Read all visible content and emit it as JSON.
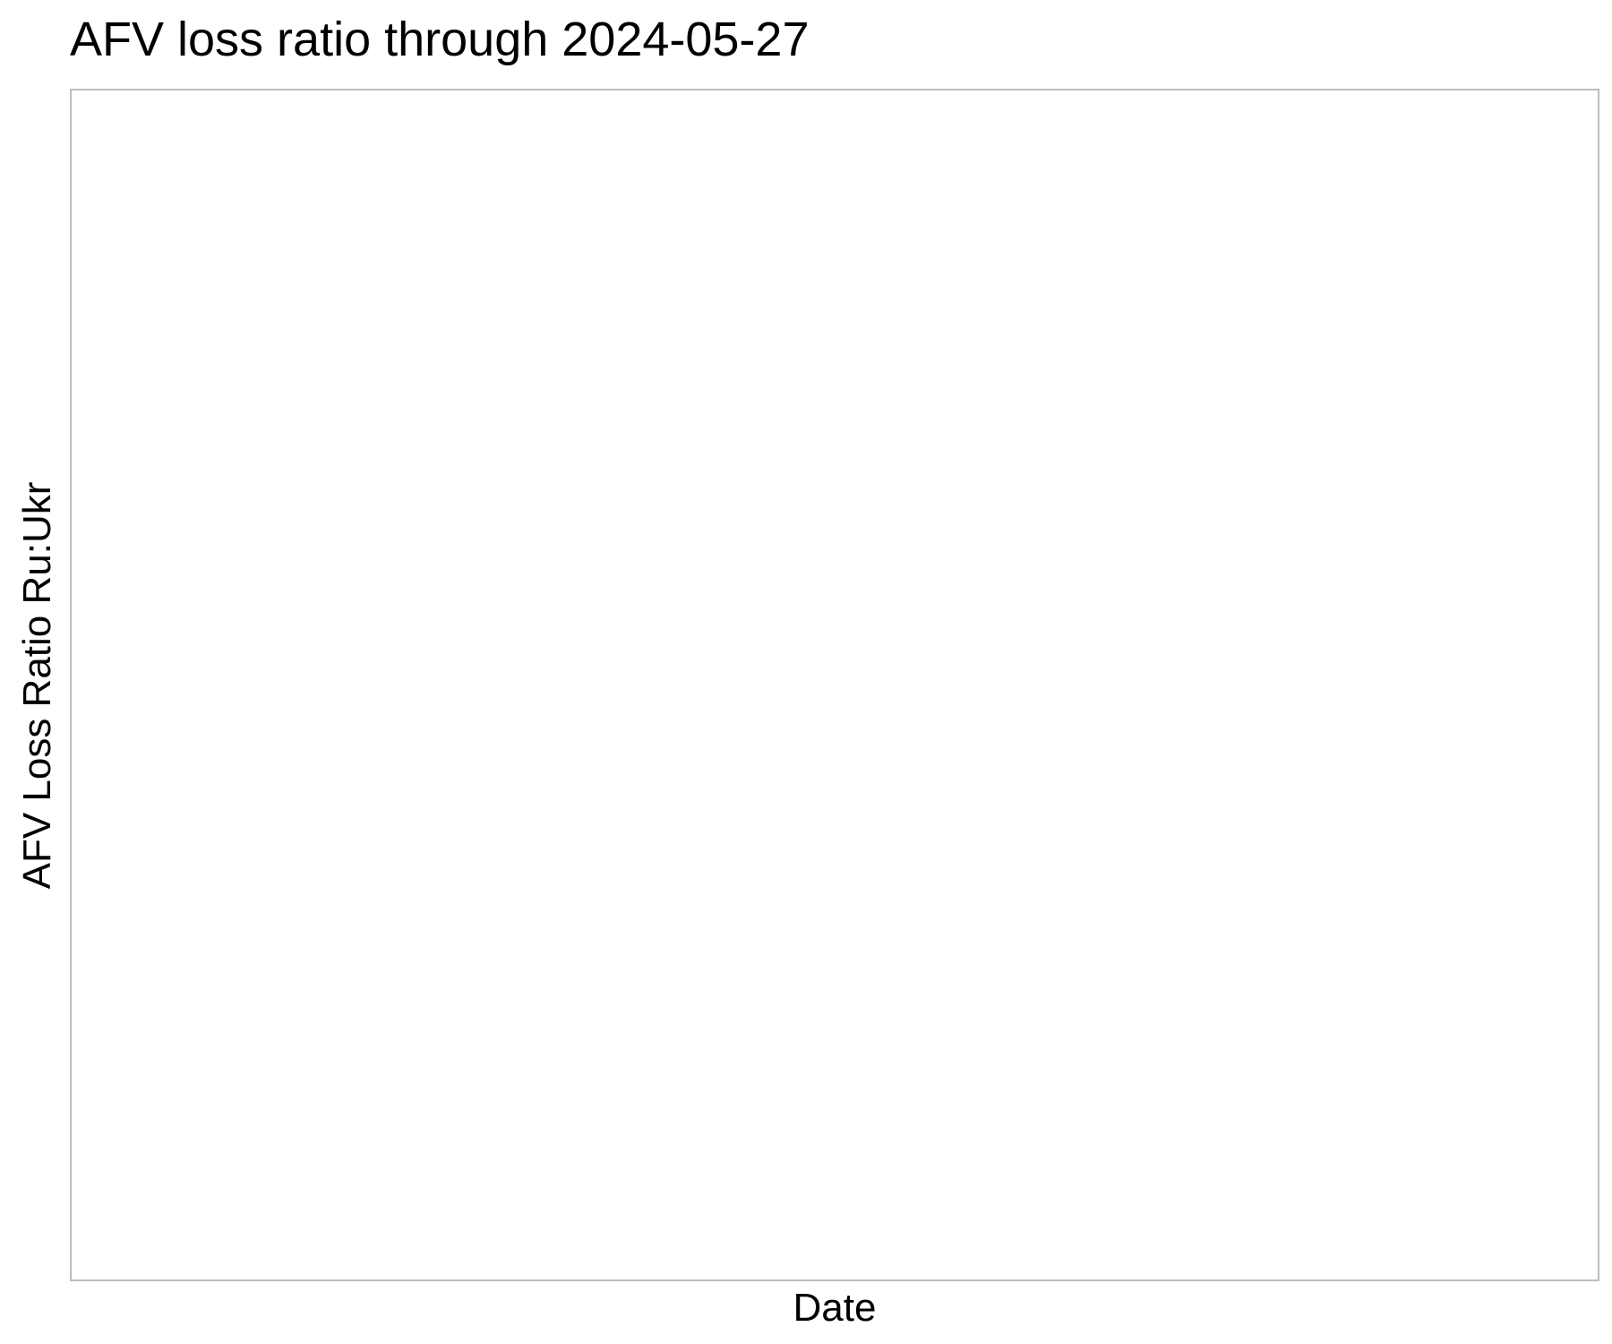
{
  "chart_data": {
    "type": "line",
    "title": "AFV loss ratio through 2024-05-27",
    "xlabel": "Date",
    "ylabel": "AFV Loss Ratio Ru:Ukr",
    "x": [],
    "series": [],
    "grid": false,
    "legend": "none",
    "colors": {
      "background": "#ffffff",
      "frame": "#bdbdbd",
      "text": "#000000"
    }
  }
}
